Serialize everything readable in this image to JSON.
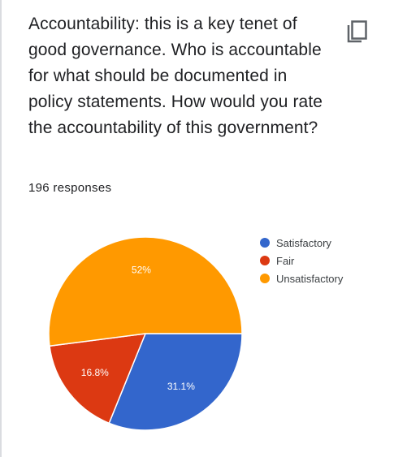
{
  "question": {
    "text": "Accountability: this is a key tenet of good governance. Who is accountable for what should be documented in policy statements. How would you rate the accountability of this government?"
  },
  "responses_label": "196 responses",
  "icons": {
    "copy": "copy-icon"
  },
  "colors": {
    "satisfactory": "#3366cc",
    "fair": "#dc3912",
    "unsatisfactory": "#ff9900"
  },
  "chart_data": {
    "type": "pie",
    "slices": [
      {
        "label": "Satisfactory",
        "value": 31.1,
        "display": "31.1%",
        "color": "#3366cc"
      },
      {
        "label": "Fair",
        "value": 16.8,
        "display": "16.8%",
        "color": "#dc3912"
      },
      {
        "label": "Unsatisfactory",
        "value": 52,
        "display": "52%",
        "color": "#ff9900"
      }
    ],
    "legend_position": "right",
    "start": "3 o'clock",
    "direction": "clockwise"
  }
}
